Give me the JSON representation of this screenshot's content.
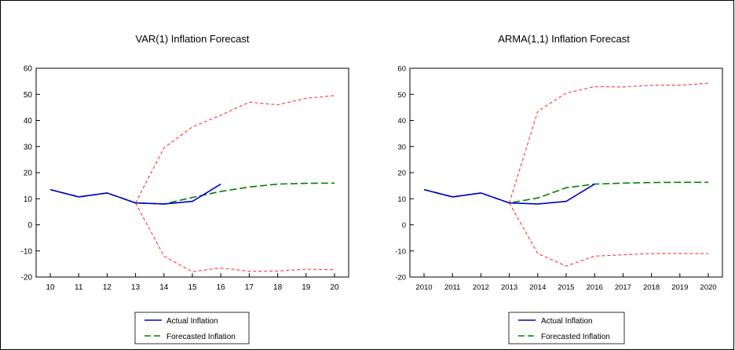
{
  "chart_data": [
    {
      "type": "line",
      "title": "VAR(1) Inflation Forecast",
      "xlabel": "",
      "ylabel": "",
      "categories": [
        "10",
        "11",
        "12",
        "13",
        "14",
        "15",
        "16",
        "17",
        "18",
        "19",
        "20"
      ],
      "ylim": [
        -20,
        60
      ],
      "yticks": [
        "60",
        "50",
        "40",
        "30",
        "20",
        "10",
        "0",
        "-10",
        "-20"
      ],
      "grid": false,
      "legend": "bottom",
      "series": [
        {
          "name": "Actual Inflation",
          "color": "#0000cc",
          "dash": "solid",
          "values": [
            13.5,
            10.7,
            12.2,
            8.4,
            8.0,
            9.0,
            15.6,
            null,
            null,
            null,
            null
          ]
        },
        {
          "name": "Forecasted Inflation",
          "color": "#008000",
          "dash": "long",
          "values": [
            13.5,
            10.7,
            12.2,
            8.4,
            8.0,
            10.5,
            12.8,
            14.5,
            15.6,
            15.9,
            16.0
          ]
        },
        {
          "name": "",
          "color": "#ff3333",
          "dash": "short",
          "values": [
            null,
            null,
            null,
            8.4,
            29.5,
            37.5,
            42.0,
            47.0,
            46.0,
            48.5,
            49.5
          ]
        },
        {
          "name": "",
          "color": "#ff3333",
          "dash": "short",
          "values": [
            null,
            null,
            null,
            8.4,
            -12.0,
            -18.0,
            -16.5,
            -17.8,
            -17.7,
            -17.0,
            -17.2
          ]
        }
      ]
    },
    {
      "type": "line",
      "title": "ARMA(1,1) Inflation Forecast",
      "xlabel": "",
      "ylabel": "",
      "categories": [
        "2010",
        "2011",
        "2012",
        "2013",
        "2014",
        "2015",
        "2016",
        "2017",
        "2018",
        "2019",
        "2020"
      ],
      "ylim": [
        -20,
        60
      ],
      "yticks": [
        "60",
        "50",
        "40",
        "30",
        "20",
        "10",
        "0",
        "-10",
        "-20"
      ],
      "grid": false,
      "legend": "bottom",
      "series": [
        {
          "name": "Actual Inflation",
          "color": "#0000cc",
          "dash": "solid",
          "values": [
            13.5,
            10.7,
            12.2,
            8.4,
            8.0,
            9.0,
            15.6,
            null,
            null,
            null,
            null
          ]
        },
        {
          "name": "Forecasted Inflation",
          "color": "#008000",
          "dash": "long",
          "values": [
            13.5,
            10.7,
            12.2,
            8.4,
            10.3,
            14.2,
            15.6,
            16.0,
            16.2,
            16.3,
            16.3
          ]
        },
        {
          "name": "",
          "color": "#ff3333",
          "dash": "short",
          "values": [
            null,
            null,
            null,
            8.4,
            43.5,
            50.5,
            53.0,
            52.8,
            53.5,
            53.5,
            54.3
          ]
        },
        {
          "name": "",
          "color": "#ff3333",
          "dash": "short",
          "values": [
            null,
            null,
            null,
            8.4,
            -11.0,
            -15.8,
            -12.0,
            -11.5,
            -11.0,
            -11.0,
            -11.0
          ]
        }
      ]
    }
  ]
}
